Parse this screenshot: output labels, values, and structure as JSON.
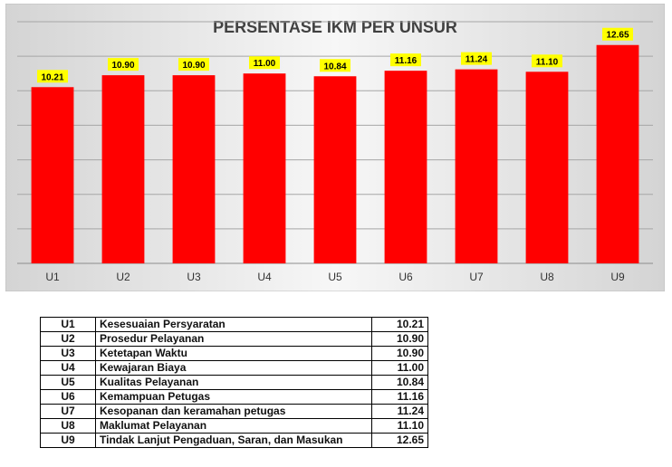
{
  "chart_data": {
    "type": "bar",
    "title": "PERSENTASE IKM PER UNSUR",
    "categories": [
      "U1",
      "U2",
      "U3",
      "U4",
      "U5",
      "U6",
      "U7",
      "U8",
      "U9"
    ],
    "values": [
      10.21,
      10.9,
      10.9,
      11.0,
      10.84,
      11.16,
      11.24,
      11.1,
      12.65
    ],
    "value_labels": [
      "10.21",
      "10.90",
      "10.90",
      "11.00",
      "10.84",
      "11.16",
      "11.24",
      "11.10",
      "12.65"
    ],
    "ylim": [
      0,
      14
    ],
    "gridlines": [
      2,
      4,
      6,
      8,
      10,
      12,
      14
    ],
    "grid": true,
    "bar_color": "#ff0000",
    "label_background": "#ffff00",
    "xlabel": "",
    "ylabel": ""
  },
  "table": {
    "rows": [
      {
        "code": "U1",
        "name": "Kesesuaian Persyaratan",
        "value": "10.21"
      },
      {
        "code": "U2",
        "name": "Prosedur Pelayanan",
        "value": "10.90"
      },
      {
        "code": "U3",
        "name": "Ketetapan Waktu",
        "value": "10.90"
      },
      {
        "code": "U4",
        "name": "Kewajaran Biaya",
        "value": "11.00"
      },
      {
        "code": "U5",
        "name": "Kualitas Pelayanan",
        "value": "10.84"
      },
      {
        "code": "U6",
        "name": "Kemampuan Petugas",
        "value": "11.16"
      },
      {
        "code": "U7",
        "name": "Kesopanan dan keramahan petugas",
        "value": "11.24"
      },
      {
        "code": "U8",
        "name": "Maklumat Pelayanan",
        "value": "11.10"
      },
      {
        "code": "U9",
        "name": "Tindak Lanjut Pengaduan, Saran, dan Masukan",
        "value": "12.65"
      }
    ]
  }
}
